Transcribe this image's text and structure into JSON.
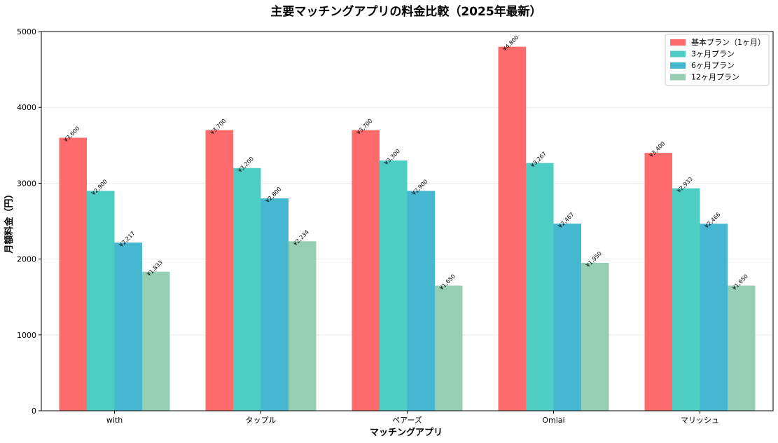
{
  "chart_data": {
    "type": "bar",
    "title": "主要マッチングアプリの料金比較（2025年最新）",
    "xlabel": "マッチングアプリ",
    "ylabel": "月額料金（円）",
    "categories": [
      "with",
      "タップル",
      "ペアーズ",
      "Omiai",
      "マリッシュ"
    ],
    "ylim": [
      0,
      5000
    ],
    "yticks": [
      0,
      1000,
      2000,
      3000,
      4000,
      5000
    ],
    "grid": true,
    "legend_position": "top-right",
    "series": [
      {
        "name": "基本プラン（1ヶ月）",
        "color": "#ff6b6b",
        "values": [
          3600,
          3700,
          3700,
          4800,
          3400
        ],
        "labels": [
          "¥3,600",
          "¥3,700",
          "¥3,700",
          "¥4,800",
          "¥3,400"
        ]
      },
      {
        "name": "3ヶ月プラン",
        "color": "#4ecdc4",
        "values": [
          2900,
          3200,
          3300,
          3267,
          2933
        ],
        "labels": [
          "¥2,900",
          "¥3,200",
          "¥3,300",
          "¥3,267",
          "¥2,933"
        ]
      },
      {
        "name": "6ヶ月プラン",
        "color": "#45b7d1",
        "values": [
          2217,
          2800,
          2900,
          2467,
          2466
        ],
        "labels": [
          "¥2,217",
          "¥2,800",
          "¥2,900",
          "¥2,467",
          "¥2,466"
        ]
      },
      {
        "name": "12ヶ月プラン",
        "color": "#96ceb4",
        "values": [
          1833,
          2234,
          1650,
          1950,
          1650
        ],
        "labels": [
          "¥1,833",
          "¥2,234",
          "¥1,650",
          "¥1,950",
          "¥1,650"
        ]
      }
    ]
  }
}
